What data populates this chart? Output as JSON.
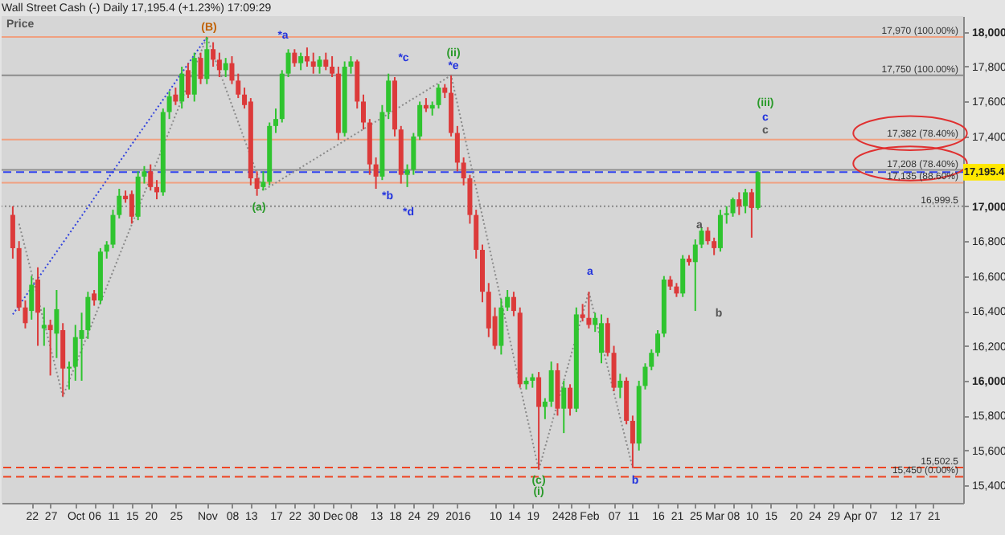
{
  "chart_data": {
    "type": "candlestick",
    "title": "Wall Street Cash (-)   Daily   17,195.4 (+1.23%)   17:09:29",
    "categories": [
      null,
      null,
      null,
      "22",
      null,
      null,
      "27",
      null,
      null,
      null,
      "Oct",
      null,
      null,
      "06",
      null,
      null,
      "11",
      null,
      null,
      "15",
      null,
      null,
      "20",
      null,
      null,
      null,
      "25",
      null,
      null,
      null,
      null,
      "Nov",
      null,
      null,
      null,
      "08",
      null,
      null,
      "13",
      null,
      null,
      null,
      "17",
      null,
      null,
      "22",
      null,
      null,
      "30",
      null,
      null,
      "Dec",
      null,
      null,
      "08",
      null,
      null,
      null,
      "13",
      null,
      null,
      "18",
      null,
      null,
      "24",
      null,
      null,
      "29",
      null,
      null,
      null,
      "2016",
      null,
      null,
      null,
      null,
      null,
      "10",
      null,
      null,
      "14",
      null,
      null,
      "19",
      null,
      null,
      null,
      "24",
      null,
      "28",
      null,
      null,
      "Feb",
      null,
      null,
      null,
      "07",
      null,
      null,
      "11",
      null,
      null,
      null,
      "16",
      null,
      null,
      "21",
      null,
      null,
      "25",
      null,
      null,
      "Mar",
      null,
      null,
      "08",
      null,
      null,
      "10",
      null,
      null,
      "15",
      null,
      null,
      null,
      "20",
      null,
      null,
      "24",
      null,
      null,
      "29",
      null,
      null,
      "Apr",
      null,
      null,
      "07",
      null,
      null,
      null,
      "12",
      null,
      null,
      "17",
      null,
      null,
      "21",
      null,
      null,
      null
    ],
    "ohlc": [
      [
        16950,
        17000,
        16700,
        16760
      ],
      [
        16760,
        16800,
        16400,
        16420
      ],
      [
        16420,
        16460,
        16300,
        16330
      ],
      [
        16400,
        16600,
        16350,
        16550
      ],
      [
        16580,
        16650,
        16200,
        16390
      ],
      [
        16300,
        16420,
        16200,
        16320
      ],
      [
        16320,
        16350,
        16030,
        16290
      ],
      [
        16270,
        16520,
        16130,
        16410
      ],
      [
        16290,
        16330,
        15910,
        16070
      ],
      [
        16070,
        16110,
        15950,
        16080
      ],
      [
        16080,
        16320,
        16000,
        16250
      ],
      [
        16240,
        16390,
        16000,
        16290
      ],
      [
        16290,
        16510,
        16240,
        16480
      ],
      [
        16500,
        16520,
        16430,
        16460
      ],
      [
        16460,
        16760,
        16440,
        16740
      ],
      [
        16740,
        16800,
        16700,
        16780
      ],
      [
        16780,
        16980,
        16760,
        16950
      ],
      [
        16950,
        17100,
        16930,
        17060
      ],
      [
        17060,
        17090,
        17020,
        17040
      ],
      [
        17070,
        17090,
        16900,
        16940
      ],
      [
        16940,
        17200,
        16920,
        17170
      ],
      [
        17170,
        17230,
        17130,
        17200
      ],
      [
        17200,
        17240,
        17090,
        17110
      ],
      [
        17110,
        17150,
        17040,
        17080
      ],
      [
        17080,
        17560,
        17060,
        17540
      ],
      [
        17540,
        17660,
        17500,
        17630
      ],
      [
        17640,
        17680,
        17580,
        17600
      ],
      [
        17600,
        17800,
        17560,
        17760
      ],
      [
        17780,
        17820,
        17620,
        17640
      ],
      [
        17640,
        17880,
        17600,
        17850
      ],
      [
        17850,
        17880,
        17700,
        17730
      ],
      [
        17730,
        17970,
        17700,
        17900
      ],
      [
        17900,
        17940,
        17800,
        17840
      ],
      [
        17840,
        17880,
        17740,
        17780
      ],
      [
        17780,
        17850,
        17740,
        17820
      ],
      [
        17820,
        17860,
        17700,
        17720
      ],
      [
        17720,
        17760,
        17620,
        17640
      ],
      [
        17640,
        17680,
        17560,
        17580
      ],
      [
        17600,
        17620,
        17120,
        17160
      ],
      [
        17160,
        17200,
        17060,
        17100
      ],
      [
        17110,
        17200,
        17090,
        17140
      ],
      [
        17140,
        17480,
        17120,
        17460
      ],
      [
        17460,
        17560,
        17420,
        17500
      ],
      [
        17500,
        17780,
        17480,
        17760
      ],
      [
        17760,
        17900,
        17740,
        17880
      ],
      [
        17880,
        17900,
        17800,
        17820
      ],
      [
        17820,
        17880,
        17780,
        17860
      ],
      [
        17860,
        17910,
        17800,
        17830
      ],
      [
        17830,
        17880,
        17760,
        17800
      ],
      [
        17800,
        17860,
        17760,
        17840
      ],
      [
        17840,
        17880,
        17780,
        17800
      ],
      [
        17800,
        17860,
        17740,
        17760
      ],
      [
        17760,
        17800,
        17380,
        17420
      ],
      [
        17420,
        17830,
        17400,
        17800
      ],
      [
        17800,
        17860,
        17760,
        17830
      ],
      [
        17830,
        17840,
        17560,
        17600
      ],
      [
        17600,
        17640,
        17440,
        17480
      ],
      [
        17480,
        17500,
        17180,
        17240
      ],
      [
        17240,
        17280,
        17100,
        17170
      ],
      [
        17170,
        17580,
        17150,
        17540
      ],
      [
        17540,
        17760,
        17500,
        17720
      ],
      [
        17720,
        17740,
        17400,
        17440
      ],
      [
        17440,
        17460,
        17130,
        17180
      ],
      [
        17180,
        17240,
        17110,
        17210
      ],
      [
        17210,
        17420,
        17180,
        17400
      ],
      [
        17400,
        17600,
        17380,
        17580
      ],
      [
        17580,
        17620,
        17540,
        17560
      ],
      [
        17560,
        17600,
        17520,
        17580
      ],
      [
        17580,
        17700,
        17560,
        17680
      ],
      [
        17680,
        17700,
        17620,
        17650
      ],
      [
        17650,
        17750,
        17400,
        17420
      ],
      [
        17420,
        17460,
        17200,
        17250
      ],
      [
        17250,
        17280,
        17120,
        17160
      ],
      [
        17160,
        17180,
        16900,
        16950
      ],
      [
        16950,
        16980,
        16700,
        16750
      ],
      [
        16750,
        16780,
        16450,
        16510
      ],
      [
        16510,
        16560,
        16250,
        16300
      ],
      [
        16370,
        16420,
        16180,
        16200
      ],
      [
        16200,
        16470,
        16150,
        16420
      ],
      [
        16420,
        16520,
        16400,
        16480
      ],
      [
        16480,
        16510,
        16370,
        16400
      ],
      [
        16390,
        16420,
        15960,
        15980
      ],
      [
        15980,
        16020,
        15950,
        16000
      ],
      [
        16000,
        16040,
        15960,
        16020
      ],
      [
        16020,
        16050,
        15490,
        15850
      ],
      [
        15850,
        15900,
        15780,
        15880
      ],
      [
        15880,
        16110,
        15850,
        16060
      ],
      [
        16060,
        16100,
        15800,
        15840
      ],
      [
        15840,
        16000,
        15700,
        15960
      ],
      [
        15960,
        15980,
        15800,
        15840
      ],
      [
        15840,
        16420,
        15820,
        16380
      ],
      [
        16380,
        16440,
        16340,
        16360
      ],
      [
        16360,
        16510,
        16300,
        16320
      ],
      [
        16320,
        16390,
        16280,
        16360
      ],
      [
        16160,
        16380,
        16100,
        16330
      ],
      [
        16330,
        16360,
        16140,
        16160
      ],
      [
        16160,
        16200,
        15940,
        15960
      ],
      [
        15960,
        16040,
        15900,
        16000
      ],
      [
        16000,
        16020,
        15750,
        15770
      ],
      [
        15770,
        15800,
        15500,
        15640
      ],
      [
        15640,
        16000,
        15600,
        15970
      ],
      [
        15970,
        16100,
        15950,
        16080
      ],
      [
        16080,
        16180,
        16060,
        16160
      ],
      [
        16160,
        16290,
        16140,
        16270
      ],
      [
        16270,
        16600,
        16250,
        16580
      ],
      [
        16580,
        16600,
        16520,
        16540
      ],
      [
        16540,
        16560,
        16480,
        16500
      ],
      [
        16500,
        16720,
        16480,
        16700
      ],
      [
        16700,
        16720,
        16660,
        16680
      ],
      [
        16680,
        16810,
        16400,
        16780
      ],
      [
        16780,
        16880,
        16760,
        16860
      ],
      [
        16860,
        16880,
        16780,
        16800
      ],
      [
        16800,
        16820,
        16720,
        16760
      ],
      [
        16760,
        16980,
        16740,
        16950
      ],
      [
        16950,
        17000,
        16900,
        16960
      ],
      [
        16960,
        17050,
        16940,
        17040
      ],
      [
        17040,
        17080,
        16950,
        17000
      ],
      [
        17000,
        17100,
        16960,
        17080
      ],
      [
        17080,
        17100,
        16820,
        16990
      ],
      [
        16990,
        17200,
        16980,
        17195.4
      ],
      null,
      null,
      null,
      null,
      null,
      null,
      null,
      null,
      null,
      null,
      null,
      null,
      null,
      null,
      null,
      null,
      null,
      null,
      null,
      null,
      null,
      null,
      null,
      null,
      null,
      null,
      null,
      null,
      null,
      null,
      null
    ],
    "series": [
      {
        "type": "line",
        "color": "#8a8a8a",
        "line_style": "dotted",
        "values": [
          null,
          16900,
          null,
          null,
          null,
          null,
          null,
          null,
          15910,
          null,
          null,
          null,
          null,
          null,
          null,
          null,
          null,
          null,
          null,
          null,
          null,
          null,
          null,
          null,
          null,
          null,
          null,
          null,
          null,
          null,
          null,
          17970,
          null,
          null,
          null,
          null,
          null,
          null,
          null,
          null,
          17090,
          null,
          null,
          null,
          null,
          null,
          null,
          null,
          null,
          null,
          null,
          null,
          null,
          null,
          null,
          null,
          null,
          null,
          null,
          null,
          null,
          null,
          null,
          null,
          null,
          null,
          null,
          null,
          null,
          null,
          17750,
          null,
          null,
          null,
          null,
          null,
          null,
          null,
          null,
          null,
          null,
          null,
          null,
          null,
          15490,
          null,
          null,
          null,
          null,
          null,
          null,
          null,
          16510,
          null,
          null,
          null,
          null,
          null,
          null,
          15500,
          null,
          null,
          null,
          null,
          null,
          null,
          null,
          null,
          null,
          null,
          null,
          null,
          null,
          null,
          null,
          null,
          null,
          null,
          null,
          null,
          null,
          null,
          null,
          null,
          null,
          null,
          null,
          null,
          null,
          null,
          null,
          null,
          null,
          null,
          null,
          null,
          null,
          null,
          null,
          null,
          null,
          null,
          null,
          null,
          null,
          null,
          null,
          null,
          null,
          null,
          null
        ]
      },
      {
        "type": "line",
        "color": "#3344dd",
        "line_style": "dotted",
        "values": [
          16380,
          null,
          null,
          null,
          null,
          null,
          null,
          null,
          null,
          null,
          null,
          null,
          null,
          null,
          null,
          null,
          null,
          null,
          null,
          null,
          null,
          null,
          null,
          null,
          null,
          null,
          null,
          null,
          null,
          null,
          null,
          17970,
          null,
          null,
          null,
          null,
          null,
          null,
          null,
          null,
          null,
          null,
          null,
          null,
          null,
          null,
          null,
          null,
          null,
          null,
          null,
          null,
          null,
          null,
          null,
          null,
          null,
          null,
          null,
          null,
          null,
          null,
          null,
          null,
          null,
          null,
          null,
          null,
          null,
          null,
          null,
          null,
          null,
          null,
          null,
          null,
          null,
          null,
          null,
          null,
          null,
          null,
          null,
          null,
          null,
          null,
          null,
          null,
          null,
          null,
          null,
          null,
          null,
          null,
          null,
          null,
          null,
          null,
          null,
          null,
          null,
          null,
          null,
          null,
          null,
          null,
          null,
          null,
          null,
          null,
          null,
          null,
          null,
          null,
          null,
          null,
          null,
          null,
          null,
          null,
          null,
          null,
          null,
          null,
          null,
          null,
          null,
          null,
          null,
          null,
          null,
          null,
          null,
          null,
          null,
          null,
          null,
          null,
          null,
          null,
          null,
          null,
          null,
          null,
          null,
          null,
          null,
          null,
          null,
          null,
          null
        ]
      }
    ],
    "ylim": [
      15300,
      18090
    ],
    "yticks": [
      {
        "value": 15400,
        "label": "15,400"
      },
      {
        "value": 15600,
        "label": "15,600"
      },
      {
        "value": 15800,
        "label": "15,800"
      },
      {
        "value": 16000,
        "label": "16,000"
      },
      {
        "value": 16200,
        "label": "16,200"
      },
      {
        "value": 16400,
        "label": "16,400"
      },
      {
        "value": 16600,
        "label": "16,600"
      },
      {
        "value": 16800,
        "label": "16,800"
      },
      {
        "value": 17000,
        "label": "17,000"
      },
      {
        "value": 17200,
        "label": null
      },
      {
        "value": 17400,
        "label": "17,400"
      },
      {
        "value": 17600,
        "label": "17,600"
      },
      {
        "value": 17800,
        "label": "17,800"
      },
      {
        "value": 18000,
        "label": "18,000"
      }
    ],
    "ref_lines": [
      {
        "axis": "y",
        "value": 17970,
        "label": "17,970 (100.00%)",
        "color": "#f0a080"
      },
      {
        "axis": "y",
        "value": 17750,
        "label": "17,750 (100.00%)",
        "color": "#8c8c8c"
      },
      {
        "axis": "y",
        "value": 17382,
        "label": "17,382 (78.40%)",
        "color": "#f0a080"
      },
      {
        "axis": "y",
        "value": 17208,
        "label": "17,208 (78.40%)",
        "color": "#8c8c8c"
      },
      {
        "axis": "y",
        "value": 17135,
        "label": "17,135 (88.60%)",
        "color": "#f0a080"
      },
      {
        "axis": "y",
        "value": 16999.5,
        "label": "16,999.5",
        "color": "#888888",
        "line_style": "dotted"
      },
      {
        "axis": "y",
        "value": 15502.5,
        "label": "15,502.5",
        "color": "#ee4422",
        "line_style": "dashed"
      },
      {
        "axis": "y",
        "value": 15450,
        "label": "15,450 (0.00%)",
        "color": "#ee4422",
        "line_style": "dashed"
      },
      {
        "axis": "y",
        "value": 17195.4,
        "label": "17,195.4",
        "color": "#3344ee",
        "line_style": "dashed"
      }
    ],
    "annotations": [
      "Price",
      "(B)",
      "*a",
      "*c",
      "(ii)",
      "*e",
      "(a)",
      "*b",
      "*d",
      "(c)",
      "(i)",
      "a",
      "b",
      "a",
      "b",
      "(iii)",
      "c",
      "c"
    ]
  }
}
